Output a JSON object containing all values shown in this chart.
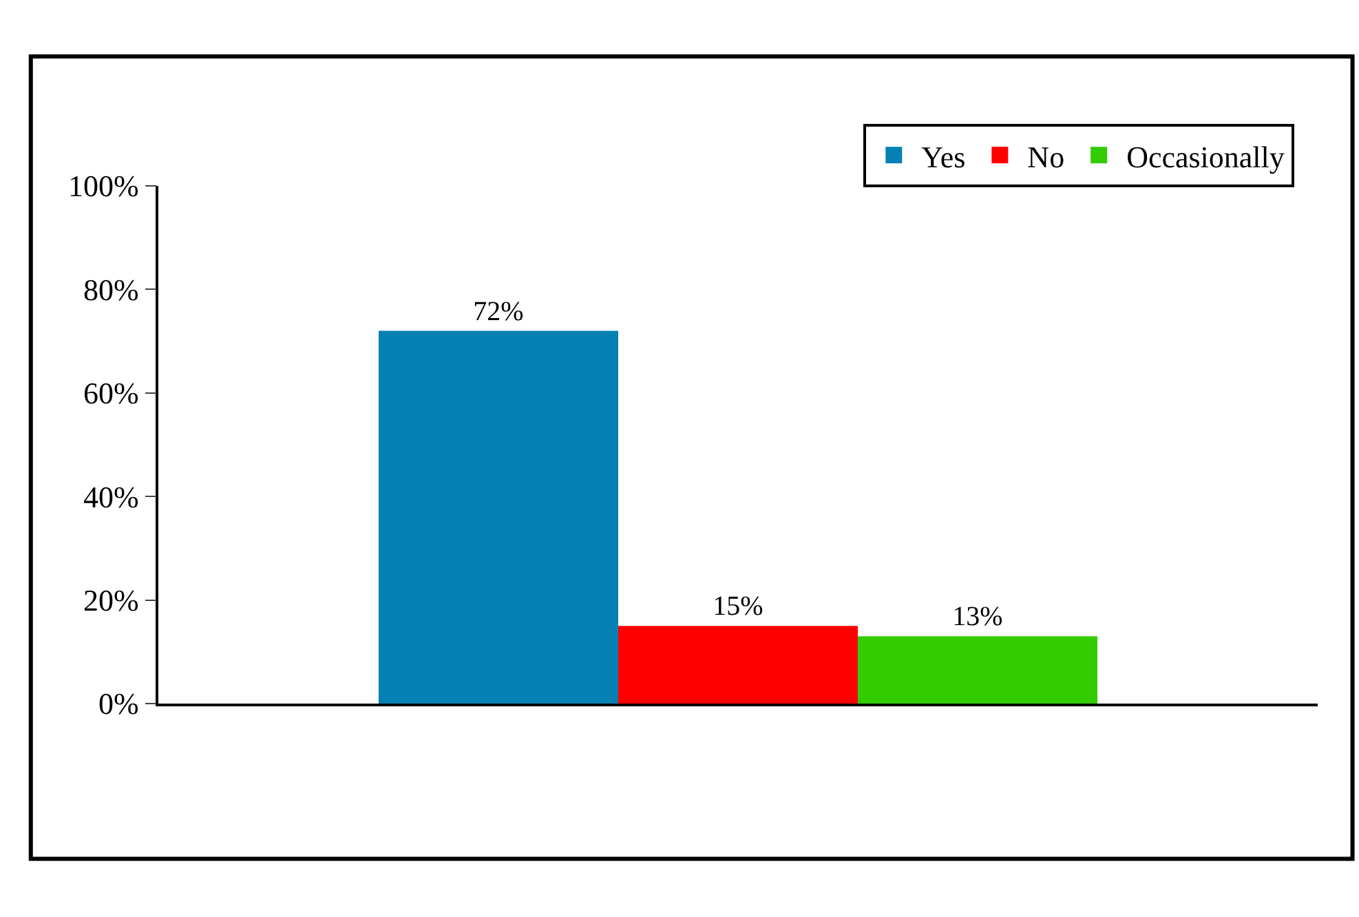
{
  "chart_data": {
    "type": "bar",
    "categories": [
      null
    ],
    "series": [
      {
        "name": "Yes",
        "color": "#0580b4",
        "values": [
          72
        ],
        "value_labels": [
          "72%"
        ]
      },
      {
        "name": "No",
        "color": "#ff0000",
        "values": [
          15
        ],
        "value_labels": [
          "15%"
        ]
      },
      {
        "name": "Occasionally",
        "color": "#33cc00",
        "values": [
          13
        ],
        "value_labels": [
          "13%"
        ]
      }
    ],
    "ylim": [
      0,
      100
    ],
    "yticks": [
      {
        "value": 0,
        "label": "0%"
      },
      {
        "value": 20,
        "label": "20%"
      },
      {
        "value": 40,
        "label": "40%"
      },
      {
        "value": 60,
        "label": "60%"
      },
      {
        "value": 80,
        "label": "80%"
      },
      {
        "value": 100,
        "label": "100%"
      }
    ],
    "tick_labels": "y",
    "legend": "top right"
  }
}
